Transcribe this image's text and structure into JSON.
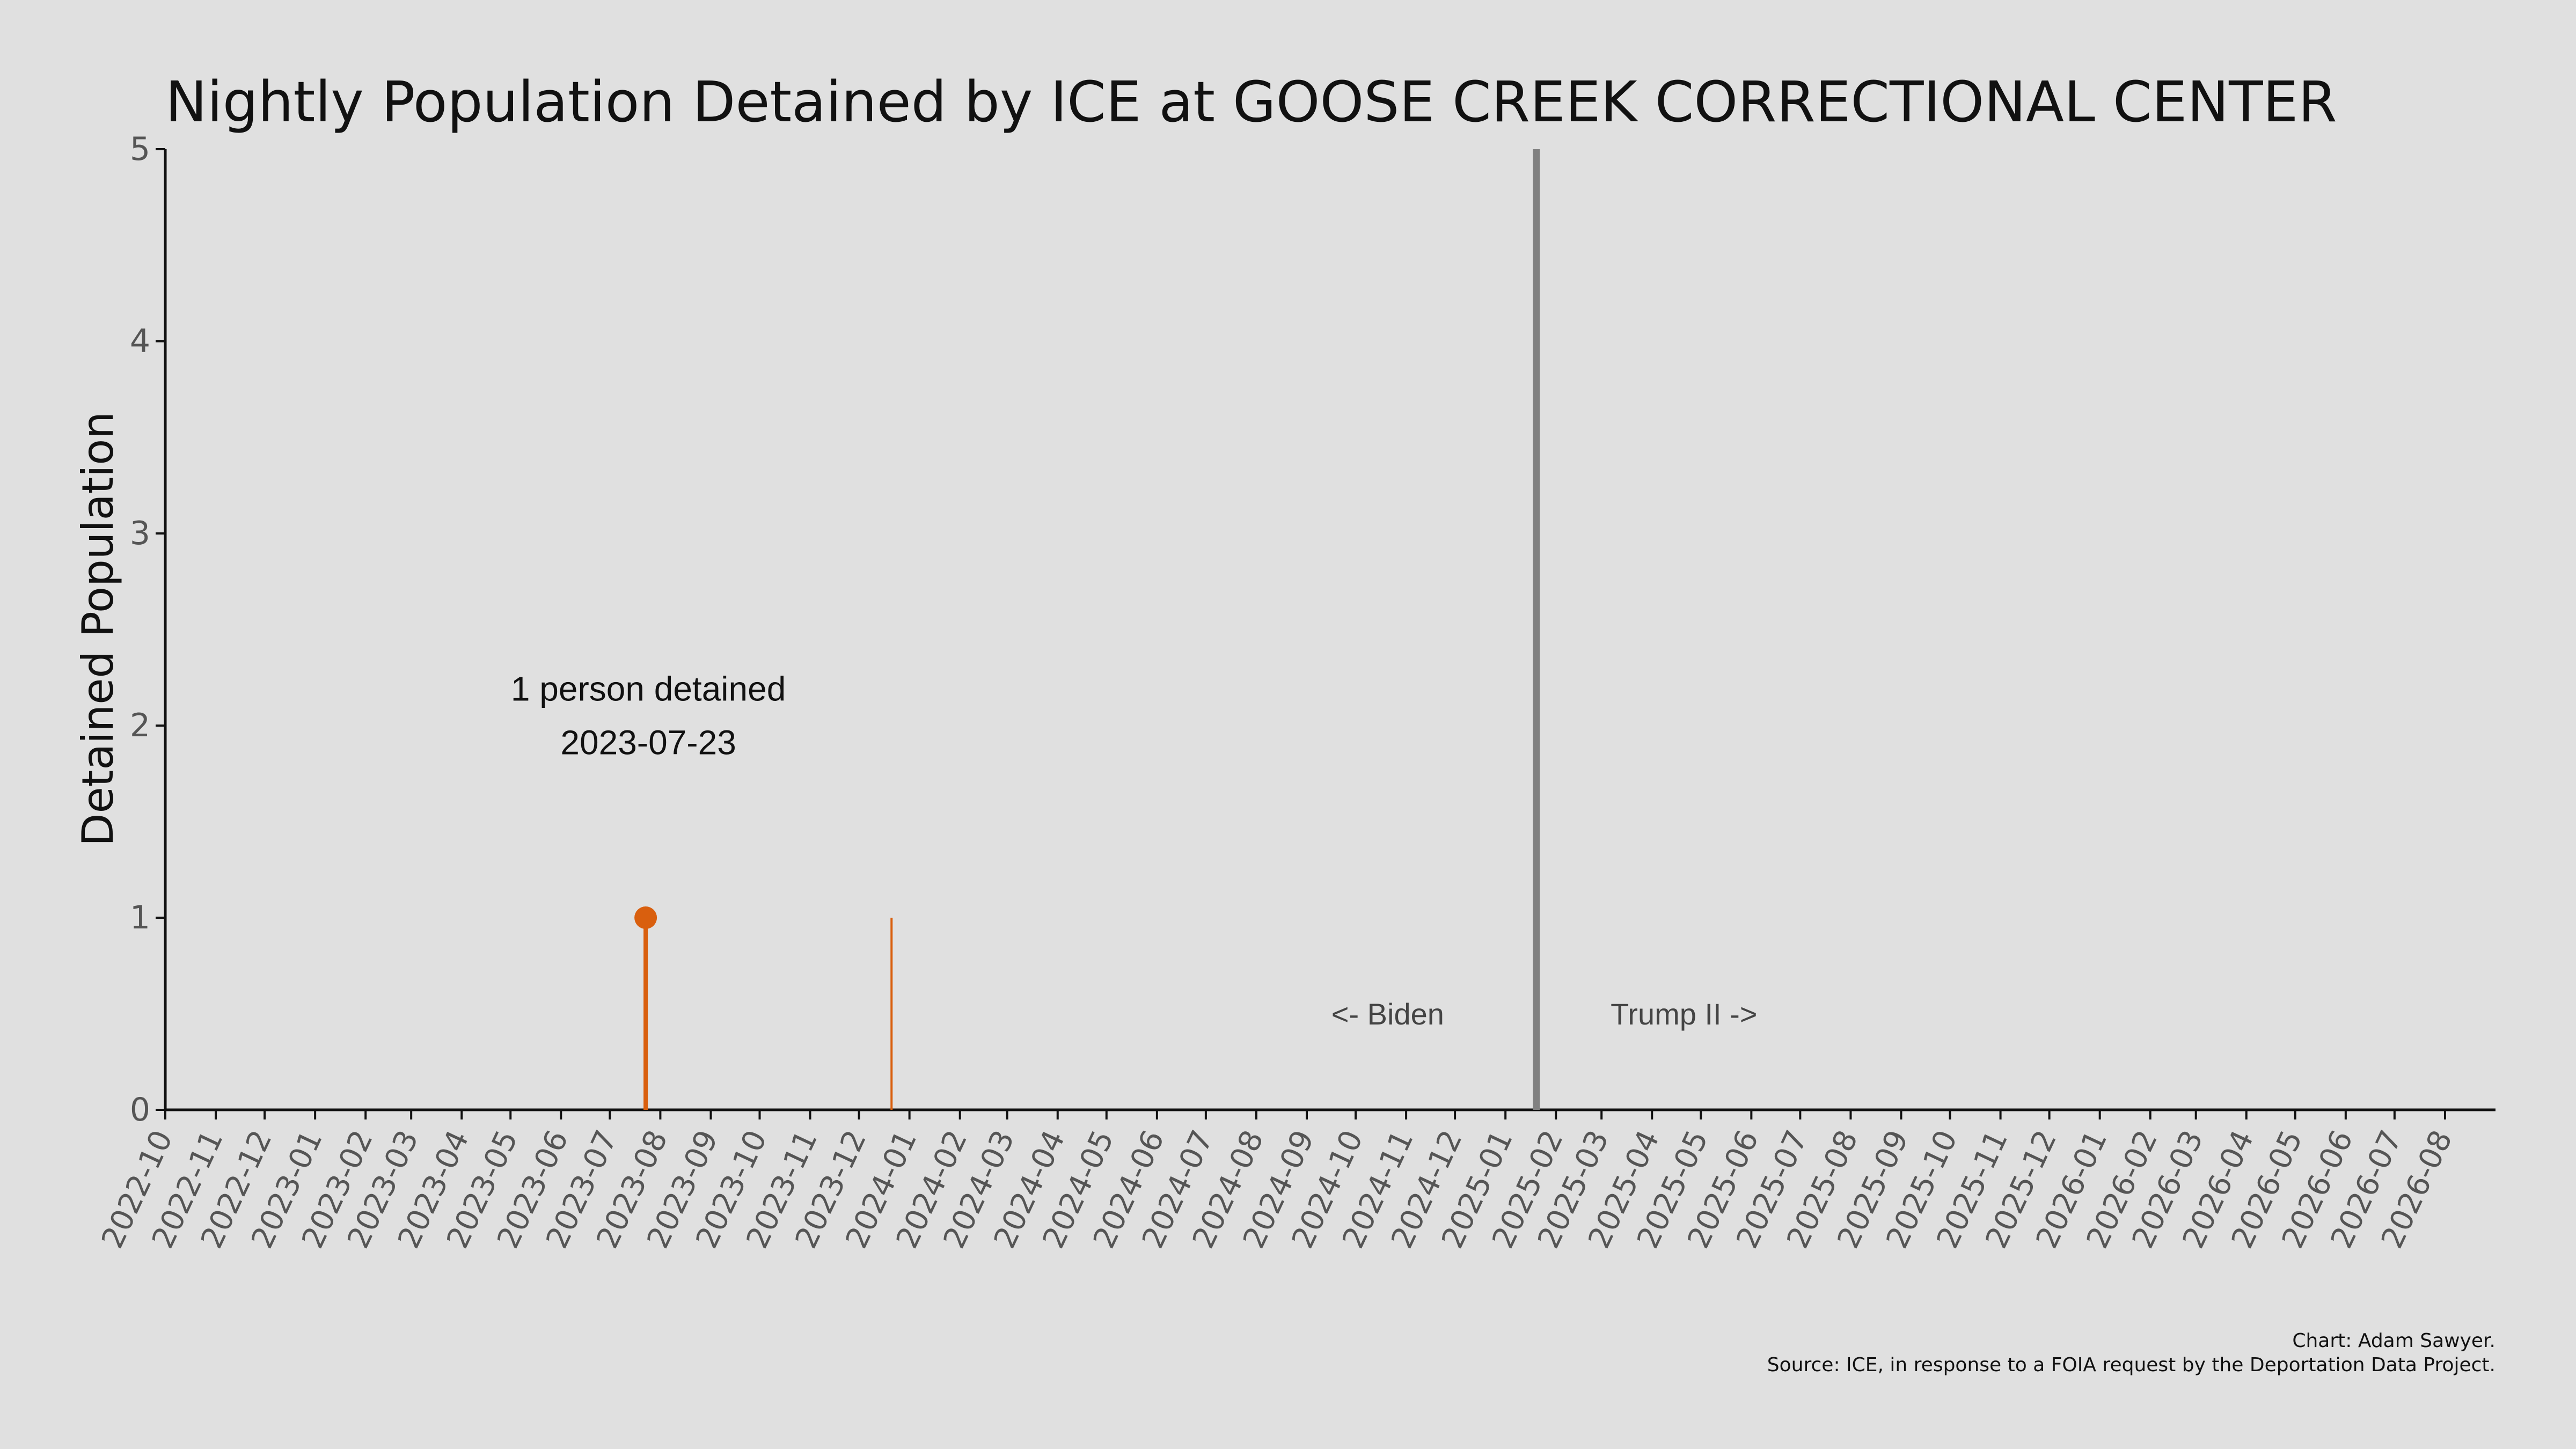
{
  "chart_data": {
    "type": "line",
    "title": "Nightly Population Detained by ICE at GOOSE CREEK CORRECTIONAL CENTER",
    "xlabel": "",
    "ylabel": "Detained Population",
    "ylim": [
      0,
      5
    ],
    "yticks": [
      "0",
      "1",
      "2",
      "3",
      "4",
      "5"
    ],
    "xlim": [
      "2022-10-01",
      "2026-09-01"
    ],
    "xticks": [
      "2022-10",
      "2022-11",
      "2022-12",
      "2023-01",
      "2023-02",
      "2023-03",
      "2023-04",
      "2023-05",
      "2023-06",
      "2023-07",
      "2023-08",
      "2023-09",
      "2023-10",
      "2023-11",
      "2023-12",
      "2024-01",
      "2024-02",
      "2024-03",
      "2024-04",
      "2024-05",
      "2024-06",
      "2024-07",
      "2024-08",
      "2024-09",
      "2024-10",
      "2024-11",
      "2024-12",
      "2025-01",
      "2025-02",
      "2025-03",
      "2025-04",
      "2025-05",
      "2025-06",
      "2025-07",
      "2025-08",
      "2025-09",
      "2025-10",
      "2025-11",
      "2025-12",
      "2026-01",
      "2026-02",
      "2026-03",
      "2026-04",
      "2026-05",
      "2026-06",
      "2026-07",
      "2026-08"
    ],
    "series": [
      {
        "color": "#d95f0e",
        "points": [
          {
            "x": "2023-07-23",
            "y": 1
          },
          {
            "x": "2023-12-21",
            "y": 1
          }
        ]
      }
    ],
    "highlight": {
      "x": "2023-07-23",
      "y": 1,
      "color": "#d95f0e"
    },
    "annotation": {
      "line1": "1 person detained",
      "line2": "2023-07-23"
    },
    "divider": {
      "x": "2025-01-20",
      "color": "#808080"
    },
    "era_left": "<- Biden",
    "era_right": "Trump II ->",
    "grid": false,
    "legend": "none"
  },
  "credits": {
    "line1": "Chart: Adam Sawyer.",
    "line2": "Source: ICE, in response to a FOIA request by the Deportation Data Project."
  },
  "colors": {
    "background": "#e0e0e0",
    "series": "#d95f0e",
    "divider": "#808080",
    "axis": "#111111"
  }
}
